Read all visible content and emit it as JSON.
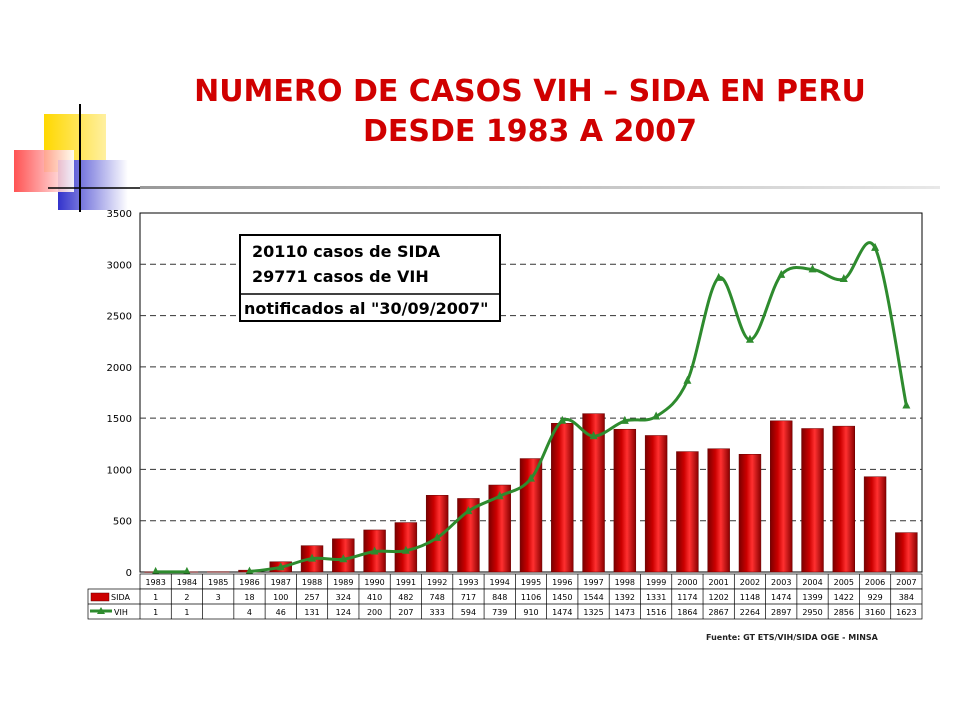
{
  "title_line1": "NUMERO DE CASOS VIH – SIDA EN PERU",
  "title_line2": "DESDE 1983 A 2007",
  "colors": {
    "title": "#d00000",
    "sida_bar": "#cc0000",
    "vih_line": "#2e8b2e"
  },
  "chart_data": {
    "type": "bar",
    "categories": [
      "1983",
      "1984",
      "1985",
      "1986",
      "1987",
      "1988",
      "1989",
      "1990",
      "1991",
      "1992",
      "1993",
      "1994",
      "1995",
      "1996",
      "1997",
      "1998",
      "1999",
      "2000",
      "2001",
      "2002",
      "2003",
      "2004",
      "2005",
      "2006",
      "2007"
    ],
    "series": [
      {
        "name": "SIDA",
        "type": "bar",
        "values": [
          "1",
          "2",
          "3",
          "18",
          "100",
          "257",
          "324",
          "410",
          "482",
          "748",
          "717",
          "848",
          "1106",
          "1450",
          "1544",
          "1392",
          "1331",
          "1174",
          "1202",
          "1148",
          "1474",
          "1399",
          "1422",
          "929",
          "384"
        ]
      },
      {
        "name": "VIH",
        "type": "line",
        "values": [
          "1",
          "1",
          "",
          "4",
          "46",
          "131",
          "124",
          "200",
          "207",
          "333",
          "594",
          "739",
          "910",
          "1474",
          "1325",
          "1473",
          "1516",
          "1864",
          "2867",
          "2264",
          "2897",
          "2950",
          "2856",
          "3160",
          "1623"
        ]
      }
    ],
    "ylim": [
      0,
      3500
    ],
    "yticks": [
      "0",
      "500",
      "1000",
      "1500",
      "2000",
      "2500",
      "3000",
      "3500"
    ],
    "grid": "dashed horizontal",
    "legend": "data table below chart",
    "annotation": [
      "20110 casos de SIDA",
      "29771 casos de VIH",
      "notificados al \"30/09/2007\""
    ],
    "source": "Fuente: GT ETS/VIH/SIDA OGE - MINSA"
  }
}
